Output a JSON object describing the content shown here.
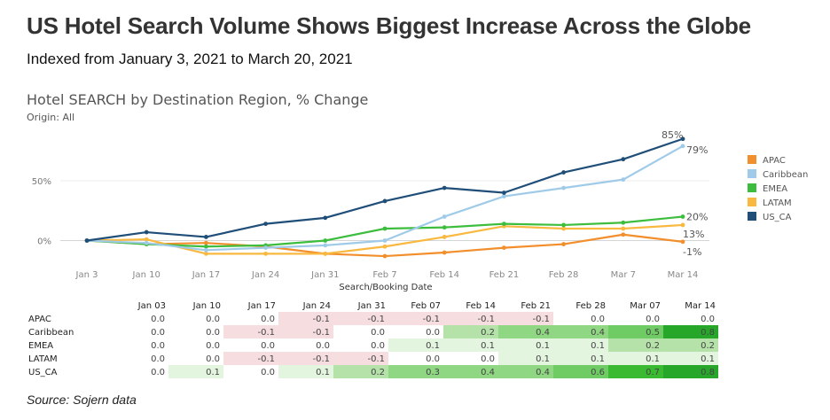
{
  "header": {
    "title": "US Hotel Search Volume Shows Biggest Increase Across the Globe",
    "subtitle": "Indexed from January 3, 2021 to March 20, 2021"
  },
  "chart_header": {
    "title": "Hotel SEARCH by Destination Region, % Change",
    "origin": "Origin: All"
  },
  "source": "Source: Sojern data",
  "chart_data": [
    {
      "type": "line",
      "xlabel": "Search/Booking Date",
      "ylabel": "",
      "categories": [
        "Jan 3",
        "Jan 10",
        "Jan 17",
        "Jan 24",
        "Jan 31",
        "Feb 7",
        "Feb 14",
        "Feb 21",
        "Feb 28",
        "Mar 7",
        "Mar 14"
      ],
      "yticks": [
        0,
        50
      ],
      "ytick_labels": [
        "0%",
        "50%"
      ],
      "ylim": [
        -18,
        95
      ],
      "grid": true,
      "legend_position": "right",
      "series": [
        {
          "name": "APAC",
          "color": "#F28E2B",
          "values": [
            0,
            -3,
            -2,
            -5,
            -11,
            -13,
            -10,
            -6,
            -3,
            5,
            -1
          ],
          "end_label": "-1%"
        },
        {
          "name": "Caribbean",
          "color": "#A0CBE8",
          "values": [
            0,
            -2,
            -8,
            -6,
            -4,
            0,
            20,
            37,
            44,
            51,
            79
          ],
          "end_label": "79%"
        },
        {
          "name": "EMEA",
          "color": "#3DBD3D",
          "values": [
            0,
            -3,
            -5,
            -4,
            0,
            10,
            11,
            14,
            13,
            15,
            20
          ],
          "end_label": "20%"
        },
        {
          "name": "LATAM",
          "color": "#F9B83F",
          "values": [
            0,
            1,
            -11,
            -11,
            -11,
            -5,
            3,
            12,
            10,
            10,
            13
          ],
          "end_label": "13%"
        },
        {
          "name": "US_CA",
          "color": "#1F4E79",
          "values": [
            0,
            7,
            3,
            14,
            19,
            33,
            44,
            40,
            57,
            68,
            85
          ],
          "end_label": "85%"
        }
      ]
    },
    {
      "type": "table",
      "columns": [
        "Jan 03",
        "Jan 10",
        "Jan 17",
        "Jan 24",
        "Jan 31",
        "Feb 07",
        "Feb 14",
        "Feb 21",
        "Feb 28",
        "Mar 07",
        "Mar 14"
      ],
      "rows": [
        {
          "name": "APAC",
          "values": [
            "0.0",
            "0.0",
            "0.0",
            "-0.1",
            "-0.1",
            "-0.1",
            "-0.1",
            "-0.1",
            "0.0",
            "0.0",
            "0.0"
          ]
        },
        {
          "name": "Caribbean",
          "values": [
            "0.0",
            "0.0",
            "-0.1",
            "-0.1",
            "0.0",
            "0.0",
            "0.2",
            "0.4",
            "0.4",
            "0.5",
            "0.8"
          ]
        },
        {
          "name": "EMEA",
          "values": [
            "0.0",
            "0.0",
            "0.0",
            "0.0",
            "0.0",
            "0.1",
            "0.1",
            "0.1",
            "0.1",
            "0.2",
            "0.2"
          ]
        },
        {
          "name": "LATAM",
          "values": [
            "0.0",
            "0.0",
            "-0.1",
            "-0.1",
            "-0.1",
            "0.0",
            "0.0",
            "0.1",
            "0.1",
            "0.1",
            "0.1"
          ]
        },
        {
          "name": "US_CA",
          "values": [
            "0.0",
            "0.1",
            "0.0",
            "0.1",
            "0.2",
            "0.3",
            "0.4",
            "0.4",
            "0.6",
            "0.7",
            "0.8"
          ]
        }
      ]
    }
  ]
}
